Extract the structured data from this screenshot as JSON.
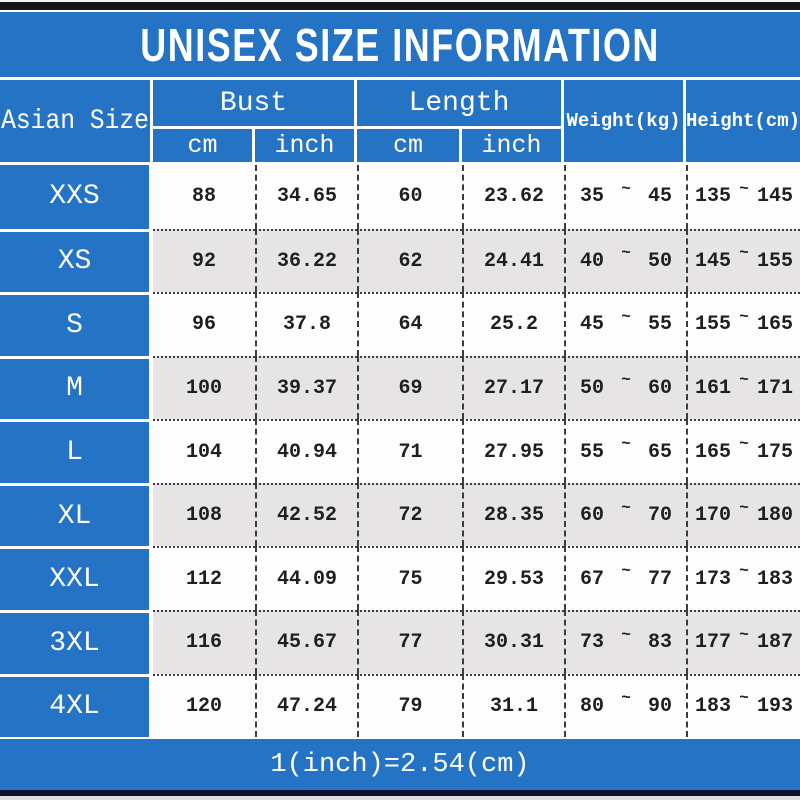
{
  "title": "UNISEX SIZE INFORMATION",
  "header": {
    "size_col": "Asian Size",
    "bust": "Bust",
    "length": "Length",
    "weight": "Weight(kg)",
    "height": "Height(cm)",
    "unit_cm": "cm",
    "unit_inch": "inch",
    "range_separator": "~"
  },
  "rows": [
    {
      "size": "XXS",
      "bust_cm": "88",
      "bust_inch": "34.65",
      "length_cm": "60",
      "length_inch": "23.62",
      "weight_min": "35",
      "weight_max": "45",
      "height_min": "135",
      "height_max": "145"
    },
    {
      "size": "XS",
      "bust_cm": "92",
      "bust_inch": "36.22",
      "length_cm": "62",
      "length_inch": "24.41",
      "weight_min": "40",
      "weight_max": "50",
      "height_min": "145",
      "height_max": "155"
    },
    {
      "size": "S",
      "bust_cm": "96",
      "bust_inch": "37.8",
      "length_cm": "64",
      "length_inch": "25.2",
      "weight_min": "45",
      "weight_max": "55",
      "height_min": "155",
      "height_max": "165"
    },
    {
      "size": "M",
      "bust_cm": "100",
      "bust_inch": "39.37",
      "length_cm": "69",
      "length_inch": "27.17",
      "weight_min": "50",
      "weight_max": "60",
      "height_min": "161",
      "height_max": "171"
    },
    {
      "size": "L",
      "bust_cm": "104",
      "bust_inch": "40.94",
      "length_cm": "71",
      "length_inch": "27.95",
      "weight_min": "55",
      "weight_max": "65",
      "height_min": "165",
      "height_max": "175"
    },
    {
      "size": "XL",
      "bust_cm": "108",
      "bust_inch": "42.52",
      "length_cm": "72",
      "length_inch": "28.35",
      "weight_min": "60",
      "weight_max": "70",
      "height_min": "170",
      "height_max": "180"
    },
    {
      "size": "XXL",
      "bust_cm": "112",
      "bust_inch": "44.09",
      "length_cm": "75",
      "length_inch": "29.53",
      "weight_min": "67",
      "weight_max": "77",
      "height_min": "173",
      "height_max": "183"
    },
    {
      "size": "3XL",
      "bust_cm": "116",
      "bust_inch": "45.67",
      "length_cm": "77",
      "length_inch": "30.31",
      "weight_min": "73",
      "weight_max": "83",
      "height_min": "177",
      "height_max": "187"
    },
    {
      "size": "4XL",
      "bust_cm": "120",
      "bust_inch": "47.24",
      "length_cm": "79",
      "length_inch": "31.1",
      "weight_min": "80",
      "weight_max": "90",
      "height_min": "183",
      "height_max": "193"
    }
  ],
  "footer": {
    "note": "1(inch)=2.54(cm)"
  },
  "colors": {
    "accent_blue": "#2573c5",
    "row_alt_gray": "#e6e4e5",
    "row_white": "#fdfdfd",
    "bar_black": "#161616",
    "bar_navy": "#10102a",
    "text_dark": "#1f1f1f",
    "text_white": "#ffffff"
  },
  "chart_data": {
    "type": "table",
    "title": "UNISEX SIZE INFORMATION",
    "columns": [
      "Asian Size",
      "Bust cm",
      "Bust inch",
      "Length cm",
      "Length inch",
      "Weight(kg)",
      "Height(cm)"
    ],
    "rows": [
      [
        "XXS",
        "88",
        "34.65",
        "60",
        "23.62",
        "35~45",
        "135~145"
      ],
      [
        "XS",
        "92",
        "36.22",
        "62",
        "24.41",
        "40~50",
        "145~155"
      ],
      [
        "S",
        "96",
        "37.8",
        "64",
        "25.2",
        "45~55",
        "155~165"
      ],
      [
        "M",
        "100",
        "39.37",
        "69",
        "27.17",
        "50~60",
        "161~171"
      ],
      [
        "L",
        "104",
        "40.94",
        "71",
        "27.95",
        "55~65",
        "165~175"
      ],
      [
        "XL",
        "108",
        "42.52",
        "72",
        "28.35",
        "60~70",
        "170~180"
      ],
      [
        "XXL",
        "112",
        "44.09",
        "75",
        "29.53",
        "67~77",
        "173~183"
      ],
      [
        "3XL",
        "116",
        "45.67",
        "77",
        "30.31",
        "73~83",
        "177~187"
      ],
      [
        "4XL",
        "120",
        "47.24",
        "79",
        "31.1",
        "80~90",
        "183~193"
      ]
    ],
    "note": "1(inch)=2.54(cm)"
  }
}
